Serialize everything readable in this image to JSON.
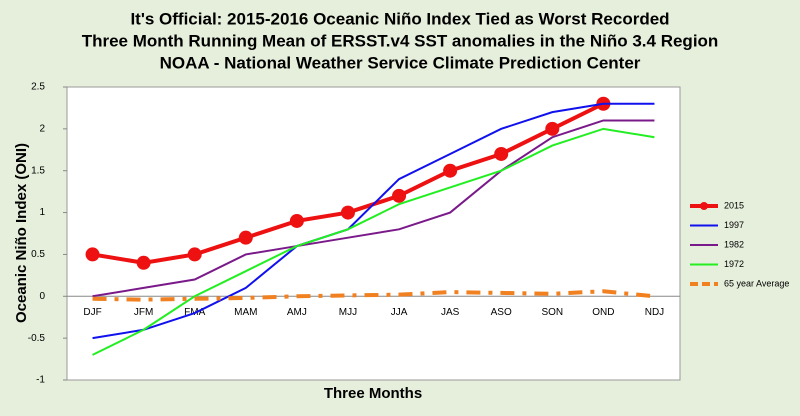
{
  "chart_data": {
    "type": "line",
    "title": "It's Official: 2015-2016 Oceanic Niño Index Tied as Worst Recorded",
    "subtitle": "Three Month Running Mean of ERSST.v4 SST anomalies in the Niño 3.4 Region",
    "source": "NOAA - National Weather Service Climate Prediction Center",
    "x_label": "Three Months",
    "y_label": "Oceanic Niño Index (ONI)",
    "categories": [
      "DJF",
      "JFM",
      "FMA",
      "MAM",
      "AMJ",
      "MJJ",
      "JJA",
      "JAS",
      "ASO",
      "SON",
      "OND",
      "NDJ"
    ],
    "series": [
      {
        "name": "2015",
        "color": "#ee1111",
        "values": [
          0.5,
          0.4,
          0.5,
          0.7,
          0.9,
          1.0,
          1.2,
          1.5,
          1.7,
          2.0,
          2.3,
          null
        ]
      },
      {
        "name": "1997",
        "color": "#1111ee",
        "values": [
          -0.5,
          -0.4,
          -0.2,
          0.1,
          0.6,
          0.8,
          1.4,
          1.7,
          2.0,
          2.2,
          2.3,
          2.3
        ]
      },
      {
        "name": "1982",
        "color": "#7a1a8a",
        "values": [
          0.0,
          0.1,
          0.2,
          0.5,
          0.6,
          0.7,
          0.8,
          1.0,
          1.5,
          1.9,
          2.1,
          2.1
        ]
      },
      {
        "name": "1972",
        "color": "#22ee22",
        "values": [
          -0.7,
          -0.4,
          0.0,
          0.3,
          0.6,
          0.8,
          1.1,
          1.3,
          1.5,
          1.8,
          2.0,
          1.9
        ]
      },
      {
        "name": "65 year Average",
        "color": "#f08020",
        "values": [
          -0.03,
          -0.04,
          -0.03,
          -0.02,
          0.0,
          0.01,
          0.02,
          0.05,
          0.04,
          0.03,
          0.06,
          0.0
        ]
      }
    ],
    "ylim": [
      -1,
      2.5
    ],
    "yticks": [
      2.5,
      2,
      1.5,
      1,
      0.5,
      0,
      -0.5,
      -1
    ],
    "grid": false,
    "legend": "right"
  }
}
